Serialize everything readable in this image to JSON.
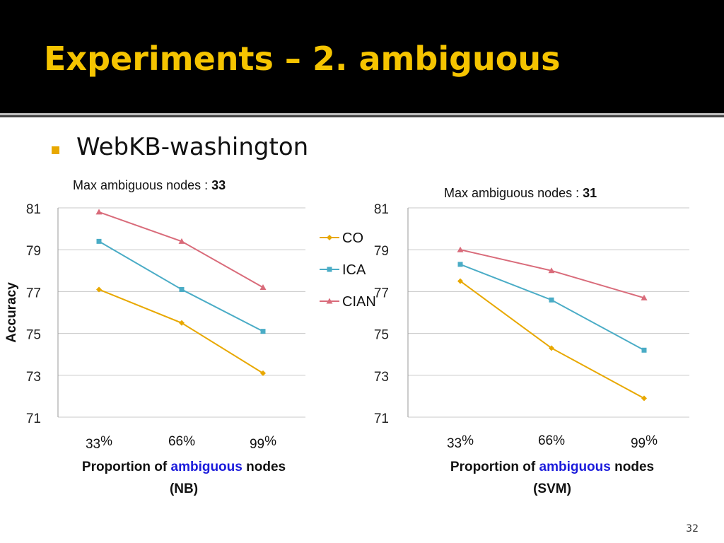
{
  "title": "Experiments – 2. ambiguous",
  "subtitle": "WebKB-washington",
  "page_number": "32",
  "colors": {
    "CO": "#e8a800",
    "ICA": "#4aacc6",
    "CIAN": "#d96b7a",
    "title": "#f5c400",
    "accent_blue": "#1a1adb"
  },
  "legend": [
    "CO",
    "ICA",
    "CIAN"
  ],
  "chart_data": [
    {
      "type": "line",
      "note_label": "Max  ambiguous  nodes : ",
      "note_value": "33",
      "xlabel_pre": "Proportion of ",
      "xlabel_accent": "ambiguous",
      "xlabel_post": " nodes",
      "xlabel_sub": "(NB)",
      "ylabel": "Accuracy",
      "categories": [
        {
          "num": "33",
          "pct": "%"
        },
        {
          "num": "",
          "pct": "66%"
        },
        {
          "num": "99",
          "pct": "%"
        }
      ],
      "yticks": [
        "81",
        "79",
        "77",
        "75",
        "73",
        "71"
      ],
      "ylim": [
        71,
        81
      ],
      "grid": true,
      "series": [
        {
          "name": "CO",
          "marker": "diamond",
          "values": [
            77.1,
            75.5,
            73.1
          ]
        },
        {
          "name": "ICA",
          "marker": "square",
          "values": [
            79.4,
            77.1,
            75.1
          ]
        },
        {
          "name": "CIAN",
          "marker": "triangle",
          "values": [
            80.8,
            79.4,
            77.2
          ]
        }
      ]
    },
    {
      "type": "line",
      "note_label": "Max  ambiguous  nodes : ",
      "note_value": "31",
      "xlabel_pre": "Proportion of ",
      "xlabel_accent": "ambiguous",
      "xlabel_post": " nodes",
      "xlabel_sub": "(SVM)",
      "ylabel": "",
      "categories": [
        {
          "num": "33",
          "pct": "%"
        },
        {
          "num": "",
          "pct": "66%"
        },
        {
          "num": "99",
          "pct": "%"
        }
      ],
      "yticks": [
        "81",
        "79",
        "77",
        "75",
        "73",
        "71"
      ],
      "ylim": [
        71,
        81
      ],
      "grid": true,
      "series": [
        {
          "name": "CO",
          "marker": "diamond",
          "values": [
            77.5,
            74.3,
            71.9
          ]
        },
        {
          "name": "ICA",
          "marker": "square",
          "values": [
            78.3,
            76.6,
            74.2
          ]
        },
        {
          "name": "CIAN",
          "marker": "triangle",
          "values": [
            79.0,
            78.0,
            76.7
          ]
        }
      ]
    }
  ]
}
